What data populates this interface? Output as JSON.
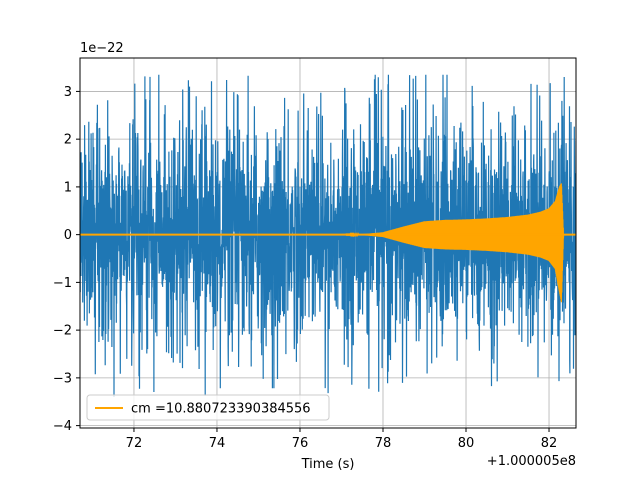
{
  "chart_data": {
    "type": "line",
    "title": "",
    "xlabel": "Time (s)",
    "ylabel": "",
    "x_offset_label": "+1.000005e8",
    "y_scale_label": "1e−22",
    "xlim": [
      70.7,
      82.65
    ],
    "ylim": [
      -4.05,
      3.7
    ],
    "x_ticks": [
      72,
      74,
      76,
      78,
      80,
      82
    ],
    "x_tick_labels": [
      "72",
      "74",
      "76",
      "78",
      "80",
      "82"
    ],
    "y_ticks": [
      -4,
      -3,
      -2,
      -1,
      0,
      1,
      2,
      3
    ],
    "y_tick_labels": [
      "−4",
      "−3",
      "−2",
      "−1",
      "0",
      "1",
      "2",
      "3"
    ],
    "grid": true,
    "legend_position": "lower-left",
    "series": [
      {
        "kind": "noise",
        "color": "#1f77b4",
        "x_range": [
          70.7,
          82.65
        ],
        "typical_amplitude": 1.9,
        "peak_amplitude": 3.4,
        "min_value": -3.4,
        "max_value": 3.35
      },
      {
        "kind": "chirp",
        "name": "cm =10.880723390384556",
        "color": "#ffa500",
        "x": [
          70.7,
          77.0,
          77.5,
          78.0,
          78.5,
          79.0,
          79.5,
          80.0,
          80.5,
          81.0,
          81.5,
          81.8,
          82.0,
          82.15,
          82.25,
          82.3,
          82.35,
          82.65
        ],
        "upper": [
          0.0,
          0.0,
          0.01,
          0.05,
          0.17,
          0.28,
          0.31,
          0.32,
          0.34,
          0.37,
          0.42,
          0.48,
          0.55,
          0.7,
          1.0,
          1.08,
          0.0,
          0.0
        ],
        "lower": [
          0.0,
          0.0,
          -0.01,
          -0.05,
          -0.17,
          -0.28,
          -0.31,
          -0.32,
          -0.34,
          -0.37,
          -0.42,
          -0.48,
          -0.55,
          -0.72,
          -1.2,
          -1.42,
          0.0,
          0.0
        ]
      }
    ]
  }
}
